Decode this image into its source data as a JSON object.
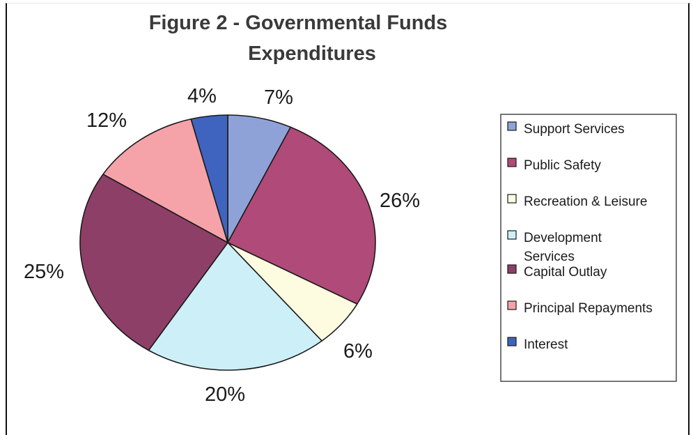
{
  "chart_data": {
    "type": "pie",
    "title": "Figure 2 - Governmental Funds Expenditures",
    "title_lines": [
      "Figure 2 - Governmental Funds",
      "Expenditures"
    ],
    "slices": [
      {
        "name": "Support Services",
        "value": 7,
        "label": "7%",
        "color": "#8fa2d8"
      },
      {
        "name": "Public Safety",
        "value": 26,
        "label": "26%",
        "color": "#b04a78"
      },
      {
        "name": "Recreation & Leisure",
        "value": 6,
        "label": "6%",
        "color": "#fdfbe0"
      },
      {
        "name": "Development Services",
        "value": 20,
        "label": "20%",
        "color": "#cdeff8"
      },
      {
        "name": "Capital Outlay",
        "value": 25,
        "label": "25%",
        "color": "#8e3f68"
      },
      {
        "name": "Principal Repayments",
        "value": 12,
        "label": "12%",
        "color": "#f5a3a9"
      },
      {
        "name": "Interest",
        "value": 4,
        "label": "4%",
        "color": "#3f64c0"
      }
    ],
    "legend": {
      "placement": "right",
      "entries": [
        {
          "lines": [
            "Support Services"
          ],
          "color": "#8fa2d8"
        },
        {
          "lines": [
            "Public Safety"
          ],
          "color": "#b04a78"
        },
        {
          "lines": [
            "Recreation & Leisure"
          ],
          "color": "#fdfbe0"
        },
        {
          "lines": [
            "Development",
            "Services"
          ],
          "color": "#cdeff8"
        },
        {
          "lines": [
            "Capital Outlay"
          ],
          "color": "#8e3f68"
        },
        {
          "lines": [
            "Principal Repayments"
          ],
          "color": "#f5a3a9"
        },
        {
          "lines": [
            "Interest"
          ],
          "color": "#3f64c0"
        }
      ]
    }
  }
}
